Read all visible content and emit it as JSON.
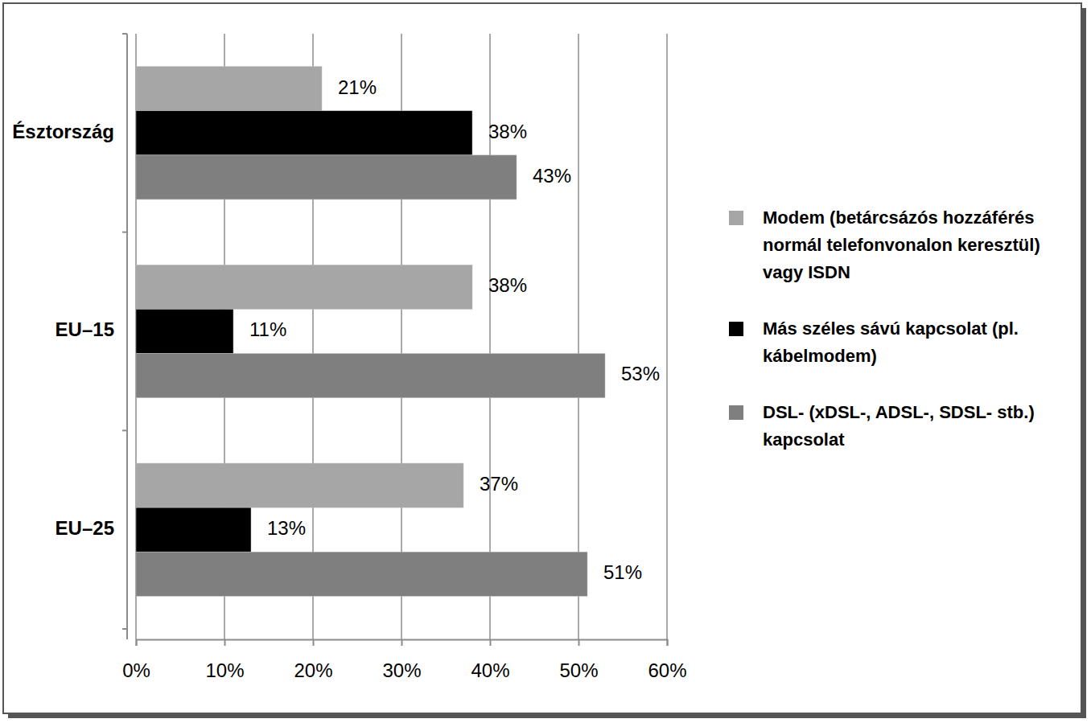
{
  "chart_data": {
    "type": "bar",
    "orientation": "horizontal",
    "categories": [
      "Észtország",
      "EU–15",
      "EU–25"
    ],
    "series": [
      {
        "name": "Modem (betárcsázós hozzáférés normál telefonvonalon keresztül) vagy ISDN",
        "color": "#a6a6a6",
        "values": [
          21,
          38,
          37
        ],
        "value_labels": [
          "21%",
          "38%",
          "37%"
        ]
      },
      {
        "name": "Más széles sávú kapcsolat (pl. kábelmodem)",
        "color": "#000000",
        "values": [
          38,
          11,
          13
        ],
        "value_labels": [
          "38%",
          "11%",
          "13%"
        ]
      },
      {
        "name": "DSL- (xDSL-, ADSL-, SDSL- stb.) kapcsolat",
        "color": "#7f7f7f",
        "values": [
          43,
          53,
          51
        ],
        "value_labels": [
          "43%",
          "53%",
          "51%"
        ]
      }
    ],
    "xlim": [
      0,
      60
    ],
    "xticks": [
      {
        "value": 0,
        "label": "0%"
      },
      {
        "value": 10,
        "label": "10%"
      },
      {
        "value": 20,
        "label": "20%"
      },
      {
        "value": 30,
        "label": "30%"
      },
      {
        "value": 40,
        "label": "40%"
      },
      {
        "value": 50,
        "label": "50%"
      },
      {
        "value": 60,
        "label": "60%"
      }
    ],
    "grid": true,
    "data_labels": true,
    "legend": "right"
  }
}
